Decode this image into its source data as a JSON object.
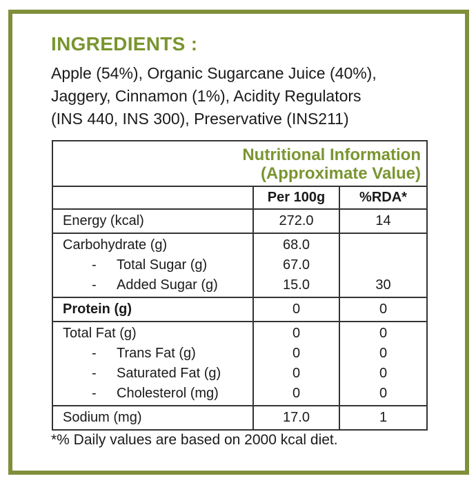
{
  "ingredients": {
    "title": "INGREDIENTS :",
    "lines": [
      "Apple (54%), Organic Sugarcane Juice (40%),",
      "Jaggery, Cinnamon (1%), Acidity Regulators",
      "(INS 440, INS 300), Preservative (INS211)"
    ]
  },
  "table": {
    "title": [
      "Nutritional Information",
      "(Approximate Value)"
    ],
    "headers": [
      "Per 100g",
      "%RDA*"
    ],
    "groups": [
      {
        "rows": [
          {
            "label": "Energy (kcal)",
            "per_100g": "272.0",
            "rda": "14"
          }
        ]
      },
      {
        "rows": [
          {
            "label": "Carbohydrate (g)",
            "per_100g": "68.0"
          },
          {
            "label": "Total Sugar (g)",
            "per_100g": "67.0",
            "sub": true
          },
          {
            "label": "Added Sugar (g)",
            "per_100g": "15.0",
            "rda": "30",
            "sub": true
          }
        ]
      },
      {
        "bold": true,
        "rows": [
          {
            "label": "Protein (g)",
            "per_100g": "0",
            "rda": "0"
          }
        ]
      },
      {
        "rows": [
          {
            "label": "Total Fat (g)",
            "per_100g": "0",
            "rda": "0"
          },
          {
            "label": "Trans Fat (g)",
            "per_100g": "0",
            "rda": "0",
            "sub": true
          },
          {
            "label": "Saturated Fat (g)",
            "per_100g": "0",
            "rda": "0",
            "sub": true
          },
          {
            "label": "Cholesterol (mg)",
            "per_100g": "0",
            "rda": "0",
            "sub": true
          }
        ]
      },
      {
        "rows": [
          {
            "label": "Sodium (mg)",
            "per_100g": "17.0",
            "rda": "1"
          }
        ]
      }
    ]
  },
  "footnote": "*% Daily values are based on 2000 kcal diet."
}
